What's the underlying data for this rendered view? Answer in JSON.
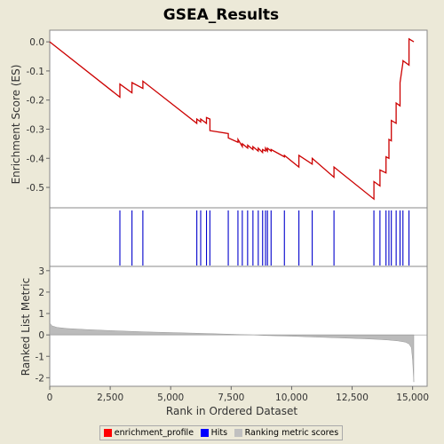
{
  "chart_data": {
    "type": "line",
    "title": "GSEA_Results",
    "xlabel": "Rank in Ordered Dataset",
    "ylabel_top": "Enrichment Score (ES)",
    "ylabel_bottom": "Ranked List Metric",
    "xlim": [
      0,
      15600
    ],
    "x_ticks": [
      "0",
      "2,500",
      "5,000",
      "7,500",
      "10,000",
      "12,500",
      "15,000"
    ],
    "x_tick_values": [
      0,
      2500,
      5000,
      7500,
      10000,
      12500,
      15000
    ],
    "es_ylim": [
      -0.57,
      0.04
    ],
    "es_ticks": [
      "0.0",
      "-0.1",
      "-0.2",
      "-0.3",
      "-0.4",
      "-0.5"
    ],
    "es_tick_values": [
      0.0,
      -0.1,
      -0.2,
      -0.3,
      -0.4,
      -0.5
    ],
    "metric_ylim": [
      -2.4,
      3.2
    ],
    "metric_ticks": [
      "3",
      "2",
      "1",
      "0",
      "-1",
      "-2"
    ],
    "metric_tick_values": [
      3,
      2,
      1,
      0,
      -1,
      -2
    ],
    "series": [
      {
        "name": "enrichment_profile",
        "color": "#cc0000",
        "x": [
          0,
          2900,
          2900,
          3400,
          3400,
          3850,
          3850,
          6080,
          6080,
          6240,
          6240,
          6480,
          6480,
          6620,
          6620,
          7380,
          7380,
          7780,
          7780,
          7960,
          7960,
          8180,
          8180,
          8400,
          8400,
          8620,
          8620,
          8800,
          8800,
          8920,
          8920,
          9000,
          9000,
          9150,
          9150,
          9700,
          9700,
          10300,
          10300,
          10850,
          10850,
          11750,
          11750,
          13400,
          13400,
          13650,
          13650,
          13900,
          13900,
          14020,
          14020,
          14120,
          14120,
          14320,
          14320,
          14480,
          14480,
          14600,
          14600,
          14850,
          14850,
          15050
        ],
        "y": [
          0.0,
          -0.19,
          -0.145,
          -0.175,
          -0.14,
          -0.16,
          -0.135,
          -0.28,
          -0.265,
          -0.275,
          -0.265,
          -0.28,
          -0.26,
          -0.265,
          -0.305,
          -0.315,
          -0.33,
          -0.345,
          -0.335,
          -0.36,
          -0.35,
          -0.365,
          -0.355,
          -0.37,
          -0.36,
          -0.375,
          -0.365,
          -0.38,
          -0.37,
          -0.375,
          -0.365,
          -0.375,
          -0.365,
          -0.375,
          -0.37,
          -0.395,
          -0.39,
          -0.43,
          -0.39,
          -0.42,
          -0.4,
          -0.465,
          -0.43,
          -0.54,
          -0.48,
          -0.495,
          -0.44,
          -0.45,
          -0.395,
          -0.4,
          -0.335,
          -0.34,
          -0.27,
          -0.28,
          -0.21,
          -0.22,
          -0.14,
          -0.07,
          -0.065,
          -0.08,
          0.01,
          0.0
        ]
      },
      {
        "name": "Hits",
        "color": "#0000cc",
        "positions": [
          2900,
          3400,
          3850,
          6080,
          6240,
          6480,
          6620,
          7380,
          7780,
          7960,
          8180,
          8400,
          8620,
          8800,
          8920,
          9000,
          9150,
          9700,
          10300,
          10850,
          11750,
          13400,
          13650,
          13900,
          14020,
          14120,
          14320,
          14480,
          14600,
          14850
        ]
      },
      {
        "name": "Ranking metric scores",
        "color": "#bbbbbb",
        "x": [
          0,
          100,
          300,
          700,
          1500,
          2500,
          4000,
          6000,
          7500,
          8300,
          9000,
          10000,
          11000,
          12000,
          13000,
          13600,
          14000,
          14400,
          14700,
          14850,
          14950,
          15000,
          15050
        ],
        "y": [
          0.55,
          0.42,
          0.35,
          0.3,
          0.25,
          0.2,
          0.14,
          0.08,
          0.03,
          0.0,
          -0.03,
          -0.06,
          -0.1,
          -0.14,
          -0.18,
          -0.21,
          -0.24,
          -0.28,
          -0.34,
          -0.42,
          -0.6,
          -1.2,
          -2.2
        ]
      }
    ],
    "legend": {
      "position": "bottom",
      "items": [
        {
          "label": "enrichment_profile",
          "color": "#ff0000"
        },
        {
          "label": "Hits",
          "color": "#0000ff"
        },
        {
          "label": "Ranking metric scores",
          "color": "#c0c0c0"
        }
      ]
    }
  }
}
